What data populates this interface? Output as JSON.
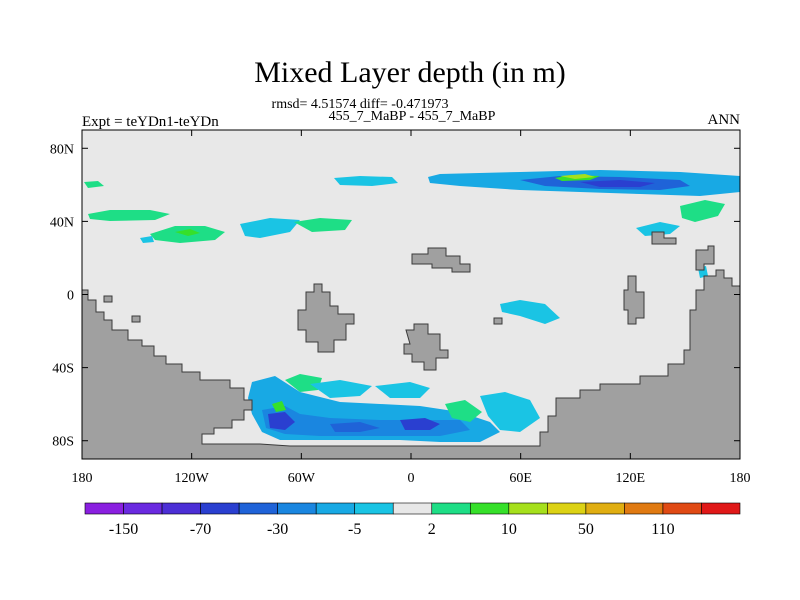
{
  "chart_data": {
    "type": "heatmap",
    "title": "Mixed Layer depth (in m)",
    "stats_line": "rmsd= 4.51574 diff= -0.471973",
    "subtitle": "455_7_MaBP - 455_7_MaBP",
    "left_label": "Expt = teYDn1-teYDn",
    "right_label": "ANN",
    "x_ticks": [
      "180",
      "120W",
      "60W",
      "0",
      "60E",
      "120E",
      "180"
    ],
    "x_values": [
      -180,
      -120,
      -60,
      0,
      60,
      120,
      180
    ],
    "y_ticks": [
      "80N",
      "40N",
      "0",
      "40S",
      "80S"
    ],
    "y_values": [
      80,
      40,
      0,
      -40,
      -80
    ],
    "xlim": [
      -180,
      180
    ],
    "ylim": [
      -90,
      90
    ],
    "colorbar": {
      "colors": [
        "#8a1fe0",
        "#6a2ae0",
        "#4c2fd6",
        "#2a3fd0",
        "#1f63d8",
        "#1a86e0",
        "#18a9e4",
        "#1ac4e4",
        "#e8e8e8",
        "#1ede86",
        "#36e02a",
        "#a6e01c",
        "#dcd214",
        "#e0ae12",
        "#e07a12",
        "#e04a14",
        "#e01818"
      ],
      "labels": [
        "-150",
        "-70",
        "-30",
        "-5",
        "2",
        "10",
        "50",
        "110"
      ]
    },
    "colors": {
      "ocean": "#e8e8e8",
      "land": "#a0a0a0",
      "coast": "#3a3a3a"
    }
  }
}
